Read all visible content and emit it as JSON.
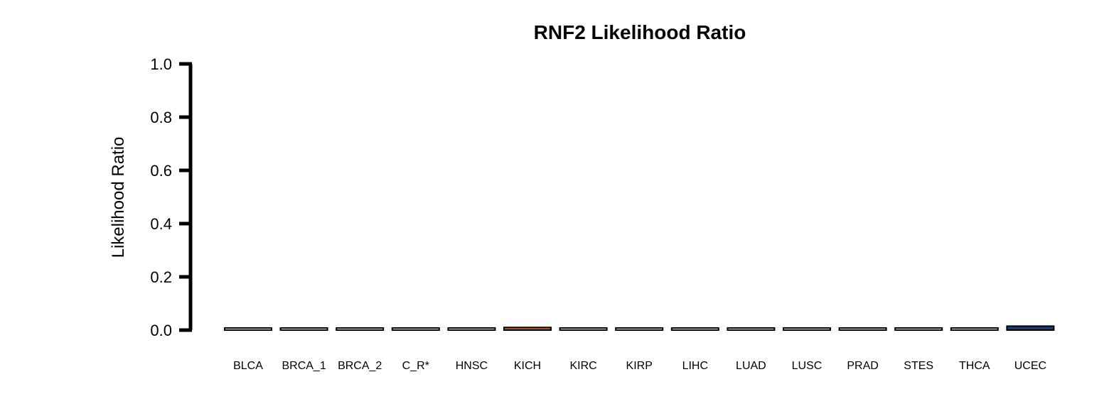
{
  "chart_data": {
    "type": "bar",
    "title": "RNF2 Likelihood Ratio",
    "xlabel": "",
    "ylabel": "Likelihood Ratio",
    "ylim": [
      0,
      1
    ],
    "yticks": [
      "0.0",
      "0.2",
      "0.4",
      "0.6",
      "0.8",
      "1.0"
    ],
    "grid": false,
    "categories": [
      "BLCA",
      "BRCA_1",
      "BRCA_2",
      "C_R*",
      "HNSC",
      "KICH",
      "KIRC",
      "KIRP",
      "LIHC",
      "LUAD",
      "LUSC",
      "PRAD",
      "STES",
      "THCA",
      "UCEC"
    ],
    "values": [
      0,
      0,
      0,
      0,
      0,
      0.01,
      0,
      0,
      0,
      0,
      0,
      0,
      0,
      0,
      0.015
    ],
    "colors": [
      "#ffffff",
      "#ffffff",
      "#ffffff",
      "#ffffff",
      "#ffffff",
      "#c0622b",
      "#ffffff",
      "#ffffff",
      "#ffffff",
      "#ffffff",
      "#ffffff",
      "#ffffff",
      "#ffffff",
      "#ffffff",
      "#1f3a6b"
    ],
    "edge_color": "#000000",
    "axis_color": "#000000"
  }
}
